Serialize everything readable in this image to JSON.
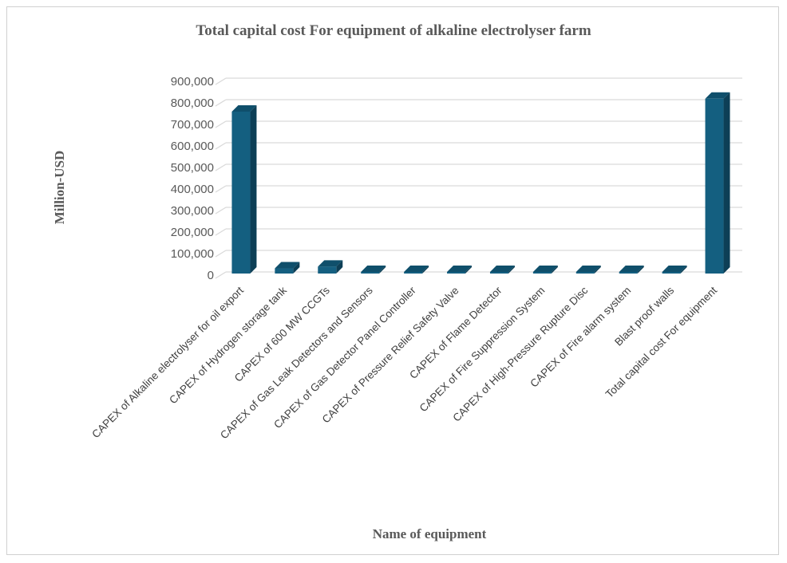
{
  "chart_data": {
    "type": "bar",
    "title": "Total capital cost For equipment of alkaline electrolyser farm",
    "xlabel": "Name of equipment",
    "ylabel": "Million-USD",
    "ylim": [
      0,
      900000
    ],
    "yticks": [
      "0",
      "100,000",
      "200,000",
      "300,000",
      "400,000",
      "500,000",
      "600,000",
      "700,000",
      "800,000",
      "900,000"
    ],
    "grid": true,
    "legend": "none",
    "categories": [
      "CAPEX of Alkaline electrolyser for oil export",
      "CAPEX of Hydrogen storage tank",
      "CAPEX of 600 MW CCGTs",
      "CAPEX of Gas Leak Detectors and Sensors",
      "CAPEX of Gas Detector Panel Controller",
      "CAPEX of Pressure Relief Safety Valve",
      "CAPEX of Flame Detector",
      "CAPEX of Fire Suppression System",
      "CAPEX of High-Pressure Rupture Disc",
      "CAPEX of Fire alarm system",
      "Blast proof walls",
      "Total capital cost For equipment"
    ],
    "values": [
      752000,
      24000,
      32000,
      500,
      300,
      300,
      300,
      500,
      300,
      1500,
      300,
      812000
    ],
    "colors": {
      "front": "#145f80",
      "side": "#0d3f56",
      "top": "#0f4f6b"
    }
  }
}
